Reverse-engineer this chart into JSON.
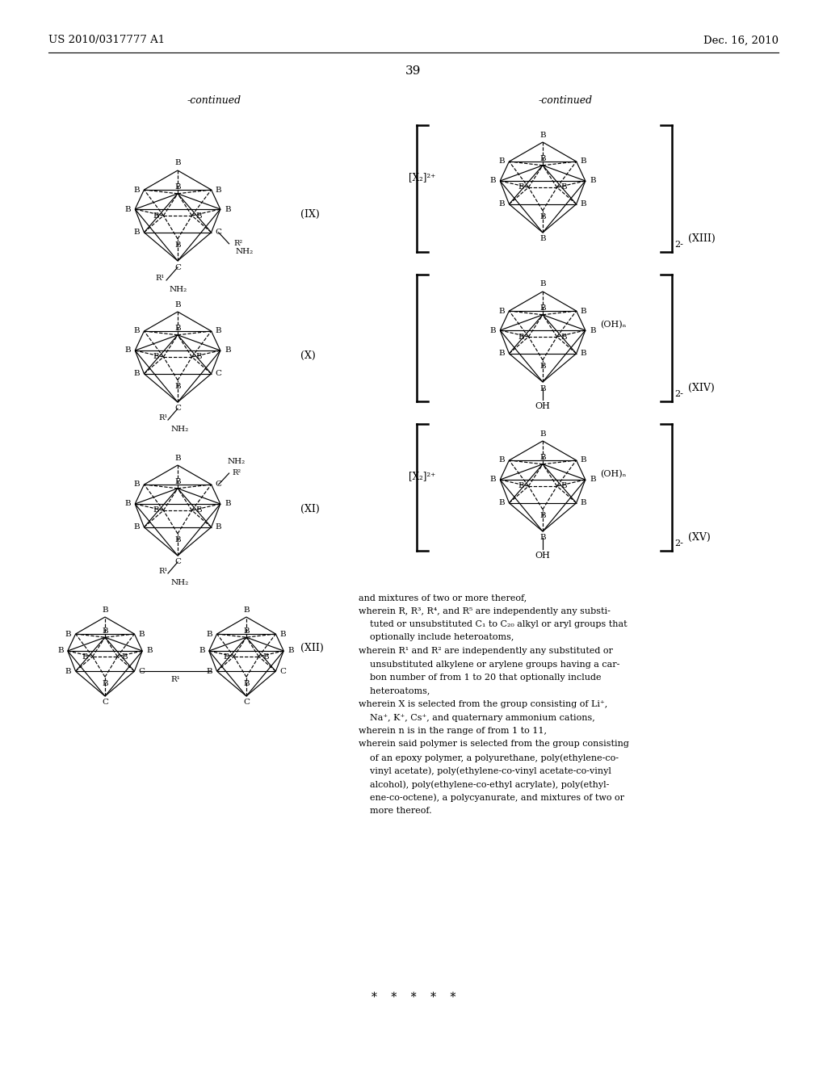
{
  "page_number": "39",
  "header_left": "US 2010/0317777 A1",
  "header_right": "Dec. 16, 2010",
  "background_color": "#ffffff",
  "text_color": "#000000",
  "continued_left": "-continued",
  "continued_right": "-continued",
  "roman_ix": "(IX)",
  "roman_x": "(X)",
  "roman_xi": "(XI)",
  "roman_xii": "(XII)",
  "roman_xiii": "(XIII)",
  "roman_xiv": "(XIV)",
  "roman_xv": "(XV)",
  "bottom_text": [
    "and mixtures of two or more thereof,",
    "wherein R, R³, R⁴, and R⁵ are independently any substi-",
    "    tuted or unsubstituted C₁ to C₂₀ alkyl or aryl groups that",
    "    optionally include heteroatoms,",
    "wherein R¹ and R² are independently any substituted or",
    "    unsubstituted alkylene or arylene groups having a car-",
    "    bon number of from 1 to 20 that optionally include",
    "    heteroatoms,",
    "wherein X is selected from the group consisting of Li⁺,",
    "    Na⁺, K⁺, Cs⁺, and quaternary ammonium cations,",
    "wherein n is in the range of from 1 to 11,",
    "wherein said polymer is selected from the group consisting",
    "    of an epoxy polymer, a polyurethane, poly(ethylene-co-",
    "    vinyl acetate), poly(ethylene-co-vinyl acetate-co-vinyl",
    "    alcohol), poly(ethylene-co-ethyl acrylate), poly(ethyl-",
    "    ene-co-octene), a polycyanurate, and mixtures of two or",
    "    more thereof."
  ],
  "stars": "*    *    *    *    *"
}
